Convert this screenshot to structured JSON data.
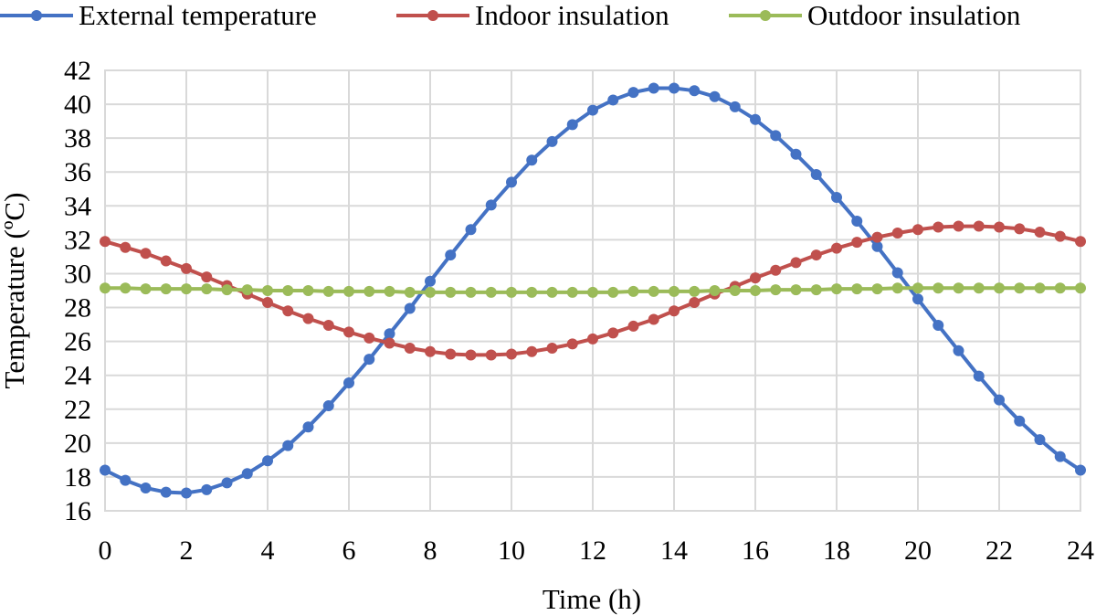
{
  "chart_data": {
    "type": "line",
    "xlabel": "Time (h)",
    "ylabel": "Temperature (ºC)",
    "xlim": [
      0,
      24
    ],
    "ylim": [
      16,
      42
    ],
    "x_ticks": [
      "0",
      "2",
      "4",
      "6",
      "8",
      "10",
      "12",
      "14",
      "16",
      "18",
      "20",
      "22",
      "24"
    ],
    "y_ticks": [
      "16",
      "18",
      "20",
      "22",
      "24",
      "26",
      "28",
      "30",
      "32",
      "34",
      "36",
      "38",
      "40",
      "42"
    ],
    "grid": true,
    "legend_position": "top",
    "x": [
      0,
      0.5,
      1,
      1.5,
      2,
      2.5,
      3,
      3.5,
      4,
      4.5,
      5,
      5.5,
      6,
      6.5,
      7,
      7.5,
      8,
      8.5,
      9,
      9.5,
      10,
      10.5,
      11,
      11.5,
      12,
      12.5,
      13,
      13.5,
      14,
      14.5,
      15,
      15.5,
      16,
      16.5,
      17,
      17.5,
      18,
      18.5,
      19,
      19.5,
      20,
      20.5,
      21,
      21.5,
      22,
      22.5,
      23,
      23.5,
      24
    ],
    "series": [
      {
        "name": "External temperature",
        "color": "#4472C4",
        "values": [
          18.4,
          17.8,
          17.35,
          17.1,
          17.05,
          17.25,
          17.65,
          18.2,
          18.95,
          19.85,
          20.95,
          22.2,
          23.55,
          24.95,
          26.45,
          27.95,
          29.55,
          31.1,
          32.6,
          34.05,
          35.4,
          36.7,
          37.8,
          38.8,
          39.65,
          40.25,
          40.7,
          40.95,
          40.95,
          40.8,
          40.45,
          39.85,
          39.1,
          38.15,
          37.05,
          35.85,
          34.5,
          33.1,
          31.6,
          30.05,
          28.5,
          26.95,
          25.45,
          23.95,
          22.55,
          21.3,
          20.2,
          19.2,
          18.4
        ]
      },
      {
        "name": "Indoor insulation",
        "color": "#C0504D",
        "values": [
          31.9,
          31.55,
          31.2,
          30.75,
          30.3,
          29.8,
          29.3,
          28.8,
          28.3,
          27.8,
          27.35,
          26.95,
          26.55,
          26.2,
          25.9,
          25.6,
          25.4,
          25.25,
          25.2,
          25.2,
          25.25,
          25.4,
          25.6,
          25.85,
          26.15,
          26.5,
          26.9,
          27.3,
          27.8,
          28.3,
          28.8,
          29.25,
          29.75,
          30.2,
          30.65,
          31.1,
          31.5,
          31.85,
          32.15,
          32.4,
          32.6,
          32.75,
          32.8,
          32.8,
          32.75,
          32.65,
          32.45,
          32.2,
          31.9
        ]
      },
      {
        "name": "Outdoor insulation",
        "color": "#9BBB59",
        "values": [
          29.15,
          29.15,
          29.1,
          29.1,
          29.1,
          29.1,
          29.05,
          29.05,
          29.0,
          29.0,
          29.0,
          28.95,
          28.95,
          28.95,
          28.95,
          28.9,
          28.9,
          28.9,
          28.9,
          28.9,
          28.9,
          28.9,
          28.9,
          28.9,
          28.9,
          28.9,
          28.95,
          28.95,
          28.95,
          28.95,
          29.0,
          29.0,
          29.0,
          29.05,
          29.05,
          29.05,
          29.1,
          29.1,
          29.1,
          29.15,
          29.15,
          29.15,
          29.15,
          29.15,
          29.15,
          29.15,
          29.15,
          29.15,
          29.15
        ]
      }
    ]
  }
}
